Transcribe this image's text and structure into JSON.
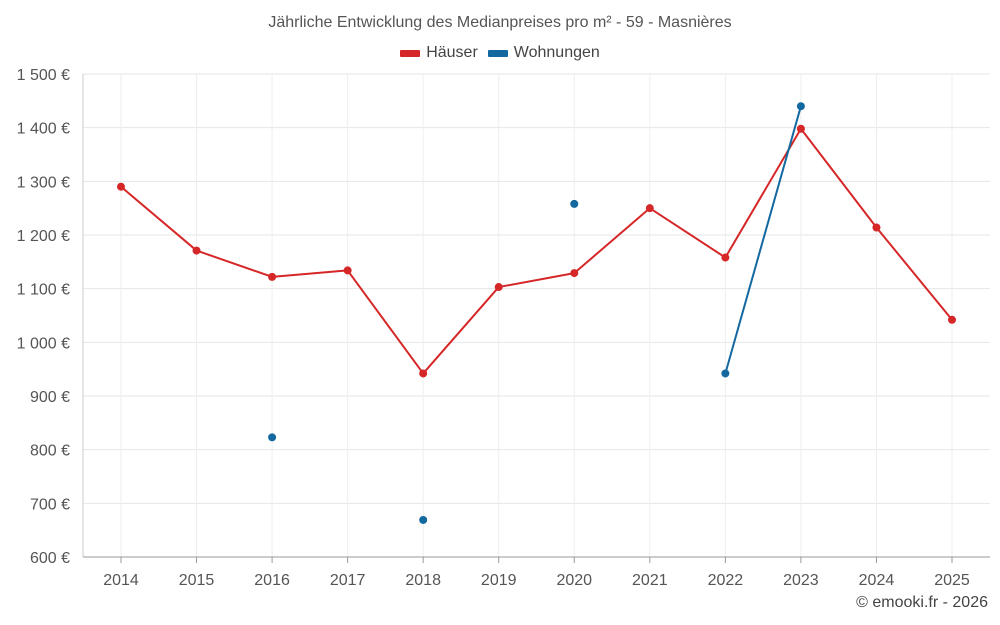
{
  "chart_data": {
    "type": "line",
    "title": "Jährliche Entwicklung des Medianpreises pro m² - 59 - Masnières",
    "categories": [
      "2014",
      "2015",
      "2016",
      "2017",
      "2018",
      "2019",
      "2020",
      "2021",
      "2022",
      "2023",
      "2024",
      "2025"
    ],
    "series": [
      {
        "name": "Häuser",
        "color": "#d62728",
        "values": [
          1290,
          1171,
          1122,
          1134,
          942,
          1103,
          1129,
          1250,
          1158,
          1398,
          1214,
          1042
        ]
      },
      {
        "name": "Wohnungen",
        "color": "#1368a0",
        "values": [
          null,
          null,
          823,
          null,
          669,
          null,
          1258,
          null,
          942,
          1440,
          null,
          null
        ]
      }
    ],
    "ylim": [
      600,
      1500
    ],
    "yticks": [
      600,
      700,
      800,
      900,
      1000,
      1100,
      1200,
      1300,
      1400,
      1500
    ],
    "ytick_labels": [
      "600 €",
      "700 €",
      "800 €",
      "900 €",
      "1 000 €",
      "1 100 €",
      "1 200 €",
      "1 300 €",
      "1 400 €",
      "1 500 €"
    ],
    "grid": true,
    "legend_position": "top-center"
  },
  "copyright": "© emooki.fr - 2026"
}
